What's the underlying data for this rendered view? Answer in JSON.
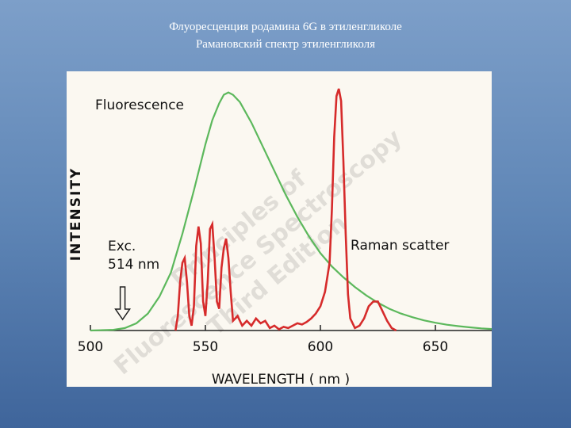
{
  "slide": {
    "title_line1": "Флуоресценция родамина 6G в этиленгликоле",
    "title_line2": "Рамановский спектр этиленгликоля"
  },
  "chart_data": {
    "type": "line",
    "xlabel": "WAVELENGTH  ( nm )",
    "ylabel": "INTENSITY",
    "xlim": [
      500,
      675
    ],
    "ylim": [
      0,
      1
    ],
    "xticks": [
      500,
      550,
      600,
      650
    ],
    "grid": false,
    "series": [
      {
        "name": "Fluorescence",
        "color": "#5cb85c",
        "points": [
          [
            500,
            0
          ],
          [
            510,
            0.003
          ],
          [
            515,
            0.01
          ],
          [
            520,
            0.03
          ],
          [
            525,
            0.07
          ],
          [
            530,
            0.14
          ],
          [
            535,
            0.24
          ],
          [
            540,
            0.4
          ],
          [
            545,
            0.58
          ],
          [
            550,
            0.77
          ],
          [
            553,
            0.87
          ],
          [
            556,
            0.94
          ],
          [
            558,
            0.975
          ],
          [
            560,
            0.985
          ],
          [
            562,
            0.975
          ],
          [
            565,
            0.945
          ],
          [
            570,
            0.86
          ],
          [
            575,
            0.76
          ],
          [
            580,
            0.66
          ],
          [
            585,
            0.56
          ],
          [
            590,
            0.47
          ],
          [
            595,
            0.39
          ],
          [
            600,
            0.32
          ],
          [
            605,
            0.265
          ],
          [
            610,
            0.22
          ],
          [
            615,
            0.18
          ],
          [
            620,
            0.145
          ],
          [
            625,
            0.115
          ],
          [
            630,
            0.09
          ],
          [
            635,
            0.07
          ],
          [
            640,
            0.055
          ],
          [
            645,
            0.042
          ],
          [
            650,
            0.032
          ],
          [
            655,
            0.024
          ],
          [
            660,
            0.018
          ],
          [
            665,
            0.013
          ],
          [
            670,
            0.009
          ],
          [
            675,
            0.006
          ]
        ]
      },
      {
        "name": "Raman scatter",
        "color": "#d62b2b",
        "points": [
          [
            537,
            0
          ],
          [
            538,
            0.06
          ],
          [
            539,
            0.2
          ],
          [
            540,
            0.28
          ],
          [
            541,
            0.3
          ],
          [
            542,
            0.2
          ],
          [
            543,
            0.06
          ],
          [
            544,
            0.02
          ],
          [
            545,
            0.1
          ],
          [
            546,
            0.35
          ],
          [
            547,
            0.43
          ],
          [
            548,
            0.36
          ],
          [
            549,
            0.12
          ],
          [
            550,
            0.06
          ],
          [
            551,
            0.2
          ],
          [
            552,
            0.42
          ],
          [
            553,
            0.44
          ],
          [
            554,
            0.3
          ],
          [
            555,
            0.12
          ],
          [
            556,
            0.09
          ],
          [
            557,
            0.26
          ],
          [
            558,
            0.34
          ],
          [
            559,
            0.38
          ],
          [
            560,
            0.3
          ],
          [
            561,
            0.16
          ],
          [
            562,
            0.04
          ],
          [
            564,
            0.06
          ],
          [
            566,
            0.02
          ],
          [
            568,
            0.04
          ],
          [
            570,
            0.02
          ],
          [
            572,
            0.05
          ],
          [
            574,
            0.03
          ],
          [
            576,
            0.04
          ],
          [
            578,
            0.01
          ],
          [
            580,
            0.02
          ],
          [
            582,
            0.005
          ],
          [
            584,
            0.015
          ],
          [
            586,
            0.01
          ],
          [
            588,
            0.02
          ],
          [
            590,
            0.03
          ],
          [
            592,
            0.025
          ],
          [
            594,
            0.035
          ],
          [
            596,
            0.05
          ],
          [
            598,
            0.07
          ],
          [
            600,
            0.1
          ],
          [
            602,
            0.16
          ],
          [
            604,
            0.28
          ],
          [
            605,
            0.5
          ],
          [
            606,
            0.8
          ],
          [
            607,
            0.97
          ],
          [
            608,
            1.0
          ],
          [
            609,
            0.95
          ],
          [
            610,
            0.7
          ],
          [
            611,
            0.4
          ],
          [
            612,
            0.15
          ],
          [
            613,
            0.05
          ],
          [
            615,
            0.01
          ],
          [
            617,
            0.02
          ],
          [
            619,
            0.05
          ],
          [
            621,
            0.1
          ],
          [
            623,
            0.12
          ],
          [
            625,
            0.12
          ],
          [
            627,
            0.08
          ],
          [
            629,
            0.04
          ],
          [
            631,
            0.01
          ],
          [
            633,
            0
          ]
        ]
      }
    ],
    "annotations": {
      "fluorescence_label": "Fluorescence",
      "raman_label": "Raman scatter",
      "exc_line1": "Exc.",
      "exc_line2": "514 nm",
      "exc_wavelength": 514
    },
    "watermark": {
      "line1": "Principles of",
      "line2": "Fluorescence Spectroscopy",
      "line3": "Third Edition"
    }
  }
}
